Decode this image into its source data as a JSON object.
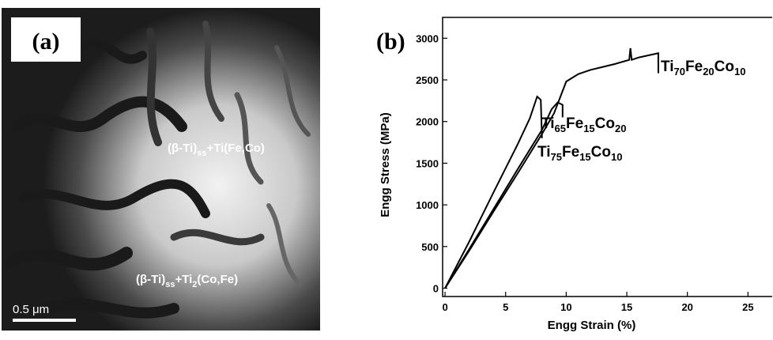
{
  "micrograph": {
    "label": "(a)",
    "phases": [
      [
        "(β-Ti)",
        "ss",
        "+Ti(Fe,Co)"
      ],
      [
        "(β-Ti)",
        "ss",
        "+Ti",
        "2",
        "(Co,Fe)"
      ]
    ],
    "scale_bar": "0.5 μm"
  },
  "chart_data": {
    "type": "line",
    "panel_label": "(b)",
    "x_label": "Engg Strain (%)",
    "y_label": "Engg Stress (MPa)",
    "xlim": [
      -0.2,
      27
    ],
    "ylim": [
      -100,
      3250
    ],
    "xticks": [
      0,
      5,
      10,
      15,
      20,
      25
    ],
    "yticks": [
      0,
      500,
      1000,
      1500,
      2000,
      2500,
      3000
    ],
    "series": [
      {
        "name": [
          "Ti",
          "70",
          "Fe",
          "20",
          "Co",
          "10"
        ],
        "color": "#000000",
        "x": [
          0,
          2,
          4,
          6,
          8,
          9,
          10,
          11,
          12,
          14,
          15.2,
          15.3,
          15.4,
          16,
          17.6,
          17.6
        ],
        "values": [
          0,
          450,
          920,
          1380,
          1850,
          2100,
          2480,
          2570,
          2620,
          2690,
          2740,
          2880,
          2740,
          2770,
          2820,
          2580
        ]
      },
      {
        "name": [
          "Ti",
          "65",
          "Fe",
          "15",
          "Co",
          "20"
        ],
        "color": "#000000",
        "x": [
          0,
          2,
          4,
          6,
          8,
          8.8,
          9.3,
          9.7,
          9.7
        ],
        "values": [
          0,
          470,
          950,
          1430,
          1900,
          2150,
          2230,
          2200,
          2050
        ]
      },
      {
        "name": [
          "Ti",
          "75",
          "Fe",
          "15",
          "Co",
          "10"
        ],
        "color": "#000000",
        "x": [
          0,
          2,
          4,
          6,
          7,
          7.6,
          7.9,
          8
        ],
        "values": [
          0,
          560,
          1150,
          1730,
          2040,
          2300,
          2260,
          1800
        ]
      }
    ]
  }
}
